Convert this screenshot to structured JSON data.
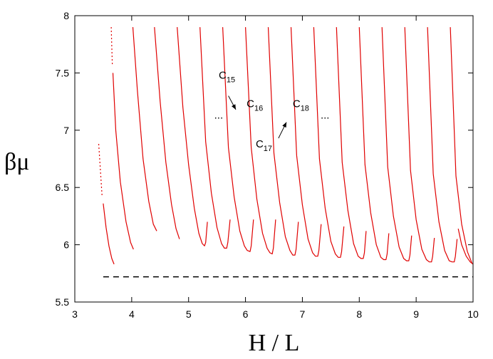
{
  "chart_data": {
    "type": "line",
    "title": "",
    "xlabel": "H / L",
    "ylabel": "βμ",
    "xlim": [
      3,
      10
    ],
    "ylim": [
      5.5,
      8
    ],
    "xticks": [
      "3",
      "4",
      "5",
      "6",
      "7",
      "8",
      "9",
      "10"
    ],
    "yticks": [
      "5.5",
      "6",
      "6.5",
      "7",
      "7.5",
      "8"
    ],
    "grid": false,
    "line_color": "#e00000",
    "reference_line": {
      "y": 5.72,
      "style": "dashed",
      "color": "#000000"
    },
    "branches": [
      {
        "dotted": [
          [
            3.42,
            6.88
          ],
          [
            3.48,
            6.42
          ]
        ],
        "x": [
          3.5,
          3.55,
          3.6,
          3.65,
          3.69
        ],
        "y": [
          6.36,
          6.15,
          5.99,
          5.88,
          5.83
        ]
      },
      {
        "dotted": [
          [
            3.64,
            7.9
          ],
          [
            3.66,
            7.56
          ]
        ],
        "x": [
          3.67,
          3.72,
          3.8,
          3.9,
          3.98,
          4.03
        ],
        "y": [
          7.5,
          7.0,
          6.55,
          6.2,
          6.02,
          5.96
        ]
      },
      {
        "x": [
          4.02,
          4.1,
          4.2,
          4.3,
          4.38,
          4.44
        ],
        "y": [
          7.9,
          7.35,
          6.75,
          6.38,
          6.18,
          6.12
        ]
      },
      {
        "x": [
          4.4,
          4.5,
          4.6,
          4.7,
          4.78,
          4.84
        ],
        "y": [
          7.9,
          7.25,
          6.72,
          6.35,
          6.14,
          6.05
        ]
      },
      {
        "x": [
          4.8,
          4.9,
          5.0,
          5.1,
          5.18,
          5.24,
          5.28,
          5.3,
          5.33
        ],
        "y": [
          7.9,
          7.2,
          6.7,
          6.32,
          6.1,
          6.01,
          5.99,
          6.02,
          6.2
        ]
      },
      {
        "x": [
          5.2,
          5.3,
          5.4,
          5.5,
          5.58,
          5.63,
          5.67,
          5.69,
          5.73
        ],
        "y": [
          7.9,
          6.9,
          6.45,
          6.15,
          6.01,
          5.97,
          5.97,
          6.02,
          6.22
        ]
      },
      {
        "x": [
          5.6,
          5.7,
          5.8,
          5.9,
          5.98,
          6.03,
          6.08,
          6.1,
          6.14
        ],
        "y": [
          7.9,
          6.85,
          6.42,
          6.12,
          5.99,
          5.95,
          5.94,
          5.99,
          6.22
        ]
      },
      {
        "x": [
          6.0,
          6.1,
          6.2,
          6.3,
          6.38,
          6.43,
          6.47,
          6.49,
          6.53
        ],
        "y": [
          7.9,
          6.85,
          6.4,
          6.1,
          5.97,
          5.93,
          5.92,
          5.97,
          6.22
        ]
      },
      {
        "x": [
          6.4,
          6.5,
          6.6,
          6.7,
          6.78,
          6.83,
          6.87,
          6.89,
          6.93
        ],
        "y": [
          7.9,
          6.8,
          6.37,
          6.07,
          5.95,
          5.91,
          5.91,
          5.96,
          6.2
        ]
      },
      {
        "x": [
          6.8,
          6.9,
          7.0,
          7.1,
          7.18,
          7.23,
          7.27,
          7.29,
          7.33
        ],
        "y": [
          7.9,
          6.78,
          6.35,
          6.05,
          5.93,
          5.9,
          5.9,
          5.95,
          6.18
        ]
      },
      {
        "x": [
          7.2,
          7.3,
          7.4,
          7.5,
          7.58,
          7.63,
          7.67,
          7.69,
          7.73
        ],
        "y": [
          7.9,
          6.75,
          6.32,
          6.03,
          5.92,
          5.89,
          5.89,
          5.94,
          6.16
        ]
      },
      {
        "x": [
          7.6,
          7.7,
          7.8,
          7.9,
          7.98,
          8.03,
          8.07,
          8.09,
          8.12
        ],
        "y": [
          7.9,
          6.72,
          6.3,
          6.01,
          5.9,
          5.88,
          5.88,
          5.93,
          6.12
        ]
      },
      {
        "x": [
          8.0,
          8.1,
          8.2,
          8.3,
          8.38,
          8.43,
          8.47,
          8.49,
          8.52
        ],
        "y": [
          7.9,
          6.7,
          6.28,
          6.0,
          5.89,
          5.87,
          5.87,
          5.92,
          6.1
        ]
      },
      {
        "x": [
          8.4,
          8.5,
          8.6,
          8.7,
          8.78,
          8.83,
          8.87,
          8.89,
          8.92
        ],
        "y": [
          7.9,
          6.68,
          6.25,
          5.98,
          5.88,
          5.86,
          5.86,
          5.91,
          6.08
        ]
      },
      {
        "x": [
          8.8,
          8.9,
          9.0,
          9.1,
          9.18,
          9.23,
          9.27,
          9.29,
          9.32
        ],
        "y": [
          7.9,
          6.65,
          6.22,
          5.96,
          5.87,
          5.85,
          5.85,
          5.9,
          6.06
        ]
      },
      {
        "x": [
          9.2,
          9.3,
          9.4,
          9.5,
          9.58,
          9.63,
          9.67,
          9.69,
          9.72
        ],
        "y": [
          7.9,
          6.62,
          6.2,
          5.95,
          5.86,
          5.85,
          5.85,
          5.9,
          6.05
        ]
      },
      {
        "x": [
          9.6,
          9.7,
          9.8,
          9.9,
          9.98
        ],
        "y": [
          7.9,
          6.6,
          6.18,
          5.94,
          5.84
        ]
      },
      {
        "x": [
          9.74,
          9.8,
          9.88,
          9.95,
          10.0
        ],
        "y": [
          6.14,
          6.0,
          5.9,
          5.85,
          5.83
        ]
      }
    ],
    "annotations": {
      "c15": {
        "base": "C",
        "sub": "15",
        "x": 5.53,
        "y": 7.45
      },
      "c16": {
        "base": "C",
        "sub": "16",
        "x": 6.02,
        "y": 7.2
      },
      "c17": {
        "base": "C",
        "sub": "17",
        "x": 6.18,
        "y": 6.85
      },
      "c18": {
        "base": "C",
        "sub": "18",
        "x": 6.83,
        "y": 7.2
      },
      "dots_left": {
        "text": "...",
        "x": 5.45,
        "y": 7.1
      },
      "dots_right": {
        "text": "...",
        "x": 7.32,
        "y": 7.1
      },
      "arrow_c15": {
        "from": [
          5.7,
          7.3
        ],
        "to": [
          5.83,
          7.18
        ]
      },
      "arrow_c17": {
        "from": [
          6.58,
          6.93
        ],
        "to": [
          6.72,
          7.07
        ]
      }
    }
  }
}
